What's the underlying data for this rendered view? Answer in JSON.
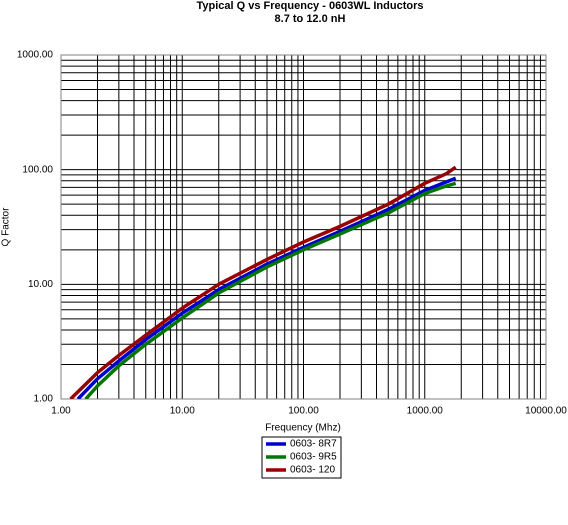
{
  "chart_data": {
    "type": "line",
    "title": "Typical Q vs Frequency - 0603WL Inductors",
    "subtitle": "8.7 to 12.0 nH",
    "x_label": "Frequency (Mhz)",
    "y_label": "Q Factor",
    "log_x": true,
    "log_y": true,
    "grid": true,
    "minor_grid": true,
    "xlim": [
      1,
      10000
    ],
    "ylim": [
      1,
      1000
    ],
    "xticks": [
      {
        "value": 1,
        "label": "1.00"
      },
      {
        "value": 10,
        "label": "10.00"
      },
      {
        "value": 100,
        "label": "100.00"
      },
      {
        "value": 1000,
        "label": "1000.00"
      },
      {
        "value": 10000,
        "label": "10000.00"
      }
    ],
    "yticks": [
      {
        "value": 1,
        "label": "1.00"
      },
      {
        "value": 10,
        "label": "10.00"
      },
      {
        "value": 100,
        "label": "100.00"
      },
      {
        "value": 1000,
        "label": "1000.00"
      }
    ],
    "legend": "bottom",
    "series": [
      {
        "name": "0603- 8R7",
        "color": "#0000cc",
        "x": [
          1.38,
          2,
          3,
          5,
          10,
          20,
          50,
          100,
          200,
          500,
          1000,
          1500,
          1800
        ],
        "values": [
          1.0,
          1.5,
          2.15,
          3.3,
          5.6,
          9,
          15,
          21,
          29,
          45,
          66,
          78,
          84
        ]
      },
      {
        "name": "0603- 9R5",
        "color": "#007700",
        "x": [
          1.6,
          2,
          3,
          5,
          10,
          20,
          50,
          100,
          200,
          500,
          1000,
          1500,
          1800
        ],
        "values": [
          1.0,
          1.3,
          1.95,
          3.0,
          5.1,
          8.4,
          14.2,
          20,
          27.5,
          42,
          62,
          72,
          76
        ]
      },
      {
        "name": "0603- 120",
        "color": "#990000",
        "x": [
          1.2,
          2,
          3,
          5,
          10,
          20,
          50,
          100,
          200,
          500,
          1000,
          1500,
          1800
        ],
        "values": [
          1.0,
          1.7,
          2.4,
          3.6,
          6.2,
          10,
          16.5,
          23.4,
          32,
          50,
          76,
          92,
          105
        ]
      }
    ]
  }
}
